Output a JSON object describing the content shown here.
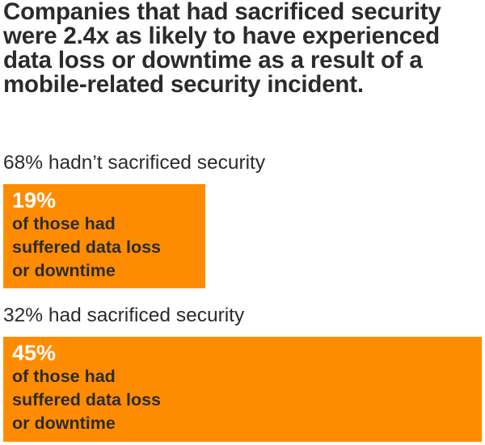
{
  "headline": "Companies that had sacrificed security were 2.4x as likely to have experienced data loss or downtime as a result of a mobile-related security incident.",
  "colors": {
    "bar": "#ff8c00",
    "text": "#2b2b2b",
    "percent_text": "#ffffff"
  },
  "chart_data": {
    "type": "bar",
    "orientation": "horizontal",
    "title": "Companies that had sacrificed security were 2.4x as likely to have experienced data loss or downtime as a result of a mobile-related security incident.",
    "xlim": [
      0,
      100
    ],
    "groups": [
      {
        "label": "68% hadn’t sacrificed security",
        "share_percent": 68,
        "value": 19,
        "value_label": "19%",
        "description": "of those had\nsuffered data loss\nor downtime"
      },
      {
        "label": "32% had sacrificed security",
        "share_percent": 32,
        "value": 45,
        "value_label": "45%",
        "description": "of those had\nsuffered data loss\nor downtime"
      }
    ]
  }
}
